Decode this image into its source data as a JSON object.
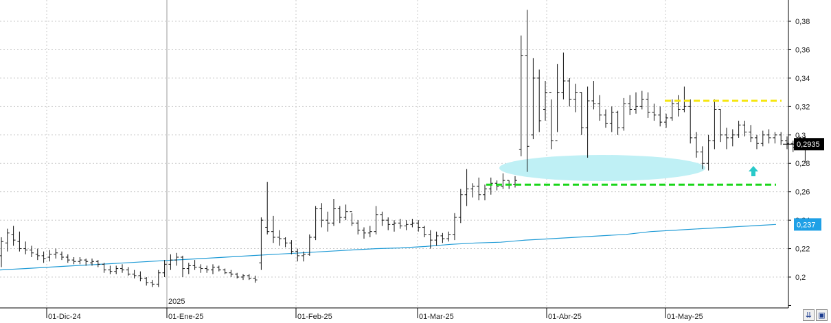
{
  "chart_data": {
    "type": "ohlc",
    "ylim": [
      0.18,
      0.39
    ],
    "y_ticks": [
      "0,2",
      "0,22",
      "0,24",
      "0,26",
      "0,28",
      "0,3",
      "0,32",
      "0,34",
      "0,36",
      "0,38"
    ],
    "y_tick_values": [
      0.2,
      0.22,
      0.24,
      0.26,
      0.28,
      0.3,
      0.32,
      0.34,
      0.36,
      0.38
    ],
    "x_labels": [
      "01-Dic-24",
      "01-Ene-25",
      "01-Feb-25",
      "01-Mar-25",
      "01-Abr-25",
      "01-May-25"
    ],
    "x_label_dates": [
      "2024-12-01",
      "2025-01-01",
      "2025-02-01",
      "2025-03-01",
      "2025-04-01",
      "2025-05-01"
    ],
    "year_marker": "2025",
    "last_price_label": "0,2935",
    "last_price": 0.2935,
    "moving_average_label": "0,237",
    "moving_average_last": 0.237,
    "colors": {
      "bars": "#111111",
      "moving_average": "#1f9bd6",
      "resistance": "#f5e60f",
      "support": "#19d619",
      "highlight_ellipse": "#bff0f5",
      "arrow": "#29c9c9",
      "ma_badge": "#1ea0e6",
      "price_badge": "#000000"
    },
    "resistance_level": 0.324,
    "support_level": 0.265,
    "bars": [
      [
        0.228,
        0.207,
        0.215,
        0.225
      ],
      [
        0.234,
        0.218,
        0.224,
        0.231
      ],
      [
        0.236,
        0.222,
        0.23,
        0.226
      ],
      [
        0.232,
        0.218,
        0.225,
        0.22
      ],
      [
        0.225,
        0.216,
        0.22,
        0.219
      ],
      [
        0.222,
        0.214,
        0.219,
        0.217
      ],
      [
        0.22,
        0.212,
        0.216,
        0.215
      ],
      [
        0.218,
        0.21,
        0.215,
        0.213
      ],
      [
        0.219,
        0.211,
        0.214,
        0.216
      ],
      [
        0.22,
        0.213,
        0.216,
        0.217
      ],
      [
        0.218,
        0.212,
        0.216,
        0.214
      ],
      [
        0.216,
        0.21,
        0.214,
        0.212
      ],
      [
        0.214,
        0.209,
        0.212,
        0.211
      ],
      [
        0.214,
        0.209,
        0.211,
        0.212
      ],
      [
        0.213,
        0.208,
        0.212,
        0.211
      ],
      [
        0.213,
        0.208,
        0.21,
        0.211
      ],
      [
        0.212,
        0.207,
        0.211,
        0.209
      ],
      [
        0.21,
        0.203,
        0.209,
        0.205
      ],
      [
        0.208,
        0.202,
        0.205,
        0.204
      ],
      [
        0.208,
        0.202,
        0.204,
        0.206
      ],
      [
        0.209,
        0.203,
        0.206,
        0.205
      ],
      [
        0.207,
        0.201,
        0.205,
        0.202
      ],
      [
        0.205,
        0.199,
        0.202,
        0.201
      ],
      [
        0.204,
        0.197,
        0.201,
        0.199
      ],
      [
        0.2,
        0.194,
        0.199,
        0.196
      ],
      [
        0.198,
        0.193,
        0.196,
        0.195
      ],
      [
        0.205,
        0.193,
        0.195,
        0.203
      ],
      [
        0.212,
        0.2,
        0.203,
        0.209
      ],
      [
        0.216,
        0.205,
        0.209,
        0.212
      ],
      [
        0.217,
        0.208,
        0.212,
        0.214
      ],
      [
        0.215,
        0.2,
        0.214,
        0.206
      ],
      [
        0.21,
        0.202,
        0.206,
        0.208
      ],
      [
        0.212,
        0.205,
        0.208,
        0.207
      ],
      [
        0.209,
        0.203,
        0.207,
        0.206
      ],
      [
        0.208,
        0.203,
        0.206,
        0.205
      ],
      [
        0.209,
        0.202,
        0.205,
        0.207
      ],
      [
        0.208,
        0.204,
        0.207,
        0.205
      ],
      [
        0.206,
        0.202,
        0.205,
        0.203
      ],
      [
        0.205,
        0.2,
        0.203,
        0.202
      ],
      [
        0.203,
        0.199,
        0.202,
        0.2
      ],
      [
        0.202,
        0.198,
        0.2,
        0.201
      ],
      [
        0.202,
        0.198,
        0.201,
        0.199
      ],
      [
        0.201,
        0.196,
        0.199,
        0.198
      ],
      [
        0.242,
        0.205,
        0.21,
        0.24
      ],
      [
        0.267,
        0.23,
        0.235,
        0.232
      ],
      [
        0.243,
        0.224,
        0.232,
        0.228
      ],
      [
        0.233,
        0.222,
        0.228,
        0.227
      ],
      [
        0.228,
        0.221,
        0.227,
        0.224
      ],
      [
        0.226,
        0.216,
        0.224,
        0.218
      ],
      [
        0.22,
        0.211,
        0.218,
        0.215
      ],
      [
        0.218,
        0.211,
        0.215,
        0.216
      ],
      [
        0.23,
        0.215,
        0.216,
        0.228
      ],
      [
        0.25,
        0.226,
        0.228,
        0.248
      ],
      [
        0.252,
        0.235,
        0.248,
        0.24
      ],
      [
        0.246,
        0.232,
        0.24,
        0.238
      ],
      [
        0.255,
        0.236,
        0.238,
        0.248
      ],
      [
        0.25,
        0.238,
        0.248,
        0.242
      ],
      [
        0.251,
        0.24,
        0.242,
        0.246
      ],
      [
        0.245,
        0.236,
        0.246,
        0.238
      ],
      [
        0.24,
        0.23,
        0.238,
        0.233
      ],
      [
        0.235,
        0.227,
        0.233,
        0.231
      ],
      [
        0.236,
        0.228,
        0.231,
        0.232
      ],
      [
        0.25,
        0.23,
        0.232,
        0.244
      ],
      [
        0.246,
        0.236,
        0.244,
        0.24
      ],
      [
        0.242,
        0.233,
        0.24,
        0.237
      ],
      [
        0.24,
        0.232,
        0.237,
        0.238
      ],
      [
        0.241,
        0.234,
        0.238,
        0.236
      ],
      [
        0.24,
        0.233,
        0.236,
        0.237
      ],
      [
        0.241,
        0.235,
        0.237,
        0.238
      ],
      [
        0.24,
        0.232,
        0.238,
        0.235
      ],
      [
        0.236,
        0.228,
        0.235,
        0.23
      ],
      [
        0.233,
        0.22,
        0.23,
        0.226
      ],
      [
        0.232,
        0.222,
        0.226,
        0.229
      ],
      [
        0.231,
        0.224,
        0.229,
        0.227
      ],
      [
        0.232,
        0.225,
        0.227,
        0.23
      ],
      [
        0.245,
        0.226,
        0.23,
        0.242
      ],
      [
        0.262,
        0.238,
        0.242,
        0.258
      ],
      [
        0.276,
        0.25,
        0.258,
        0.262
      ],
      [
        0.266,
        0.256,
        0.262,
        0.264
      ],
      [
        0.27,
        0.254,
        0.264,
        0.258
      ],
      [
        0.265,
        0.254,
        0.258,
        0.262
      ],
      [
        0.27,
        0.258,
        0.262,
        0.266
      ],
      [
        0.268,
        0.261,
        0.266,
        0.264
      ],
      [
        0.273,
        0.262,
        0.264,
        0.268
      ],
      [
        0.268,
        0.262,
        0.268,
        0.265
      ],
      [
        0.271,
        0.263,
        0.265,
        0.268
      ],
      [
        0.37,
        0.285,
        0.29,
        0.356
      ],
      [
        0.388,
        0.274,
        0.356,
        0.292
      ],
      [
        0.354,
        0.297,
        0.3,
        0.34
      ],
      [
        0.346,
        0.302,
        0.34,
        0.31
      ],
      [
        0.338,
        0.31,
        0.318,
        0.33
      ],
      [
        0.325,
        0.29,
        0.33,
        0.296
      ],
      [
        0.35,
        0.302,
        0.296,
        0.33
      ],
      [
        0.358,
        0.325,
        0.33,
        0.338
      ],
      [
        0.34,
        0.32,
        0.338,
        0.325
      ],
      [
        0.336,
        0.316,
        0.325,
        0.33
      ],
      [
        0.33,
        0.3,
        0.33,
        0.305
      ],
      [
        0.334,
        0.284,
        0.305,
        0.324
      ],
      [
        0.338,
        0.318,
        0.324,
        0.322
      ],
      [
        0.328,
        0.31,
        0.322,
        0.314
      ],
      [
        0.318,
        0.305,
        0.314,
        0.308
      ],
      [
        0.32,
        0.302,
        0.308,
        0.316
      ],
      [
        0.317,
        0.3,
        0.316,
        0.305
      ],
      [
        0.326,
        0.303,
        0.305,
        0.322
      ],
      [
        0.328,
        0.314,
        0.322,
        0.318
      ],
      [
        0.33,
        0.315,
        0.318,
        0.32
      ],
      [
        0.331,
        0.318,
        0.32,
        0.325
      ],
      [
        0.33,
        0.312,
        0.325,
        0.316
      ],
      [
        0.322,
        0.31,
        0.316,
        0.314
      ],
      [
        0.32,
        0.306,
        0.314,
        0.309
      ],
      [
        0.315,
        0.305,
        0.309,
        0.312
      ],
      [
        0.325,
        0.31,
        0.312,
        0.322
      ],
      [
        0.328,
        0.313,
        0.322,
        0.318
      ],
      [
        0.334,
        0.316,
        0.318,
        0.32
      ],
      [
        0.325,
        0.294,
        0.32,
        0.298
      ],
      [
        0.302,
        0.284,
        0.298,
        0.288
      ],
      [
        0.292,
        0.276,
        0.288,
        0.28
      ],
      [
        0.3,
        0.275,
        0.28,
        0.296
      ],
      [
        0.325,
        0.29,
        0.296,
        0.318
      ],
      [
        0.318,
        0.295,
        0.318,
        0.3
      ],
      [
        0.305,
        0.29,
        0.3,
        0.298
      ],
      [
        0.304,
        0.292,
        0.298,
        0.3
      ],
      [
        0.31,
        0.298,
        0.3,
        0.307
      ],
      [
        0.31,
        0.299,
        0.307,
        0.302
      ],
      [
        0.307,
        0.295,
        0.302,
        0.298
      ],
      [
        0.3,
        0.29,
        0.298,
        0.294
      ],
      [
        0.303,
        0.292,
        0.294,
        0.3
      ],
      [
        0.304,
        0.294,
        0.3,
        0.298
      ],
      [
        0.302,
        0.294,
        0.298,
        0.3
      ],
      [
        0.302,
        0.293,
        0.3,
        0.296
      ],
      [
        0.299,
        0.29,
        0.296,
        0.294
      ],
      [
        0.296,
        0.288,
        0.294,
        0.291
      ],
      [
        0.3,
        0.29,
        0.291,
        0.298
      ],
      [
        0.299,
        0.28,
        0.298,
        0.293
      ],
      [
        0.296,
        0.29,
        0.293,
        0.2935
      ]
    ],
    "moving_average": [
      0.205,
      0.206,
      0.207,
      0.208,
      0.209,
      0.21,
      0.211,
      0.212,
      0.213,
      0.214,
      0.215,
      0.216,
      0.217,
      0.218,
      0.219,
      0.22,
      0.2205,
      0.2215,
      0.223,
      0.224,
      0.2245,
      0.226,
      0.227,
      0.228,
      0.229,
      0.23,
      0.232,
      0.233,
      0.234,
      0.235,
      0.236,
      0.237
    ]
  }
}
